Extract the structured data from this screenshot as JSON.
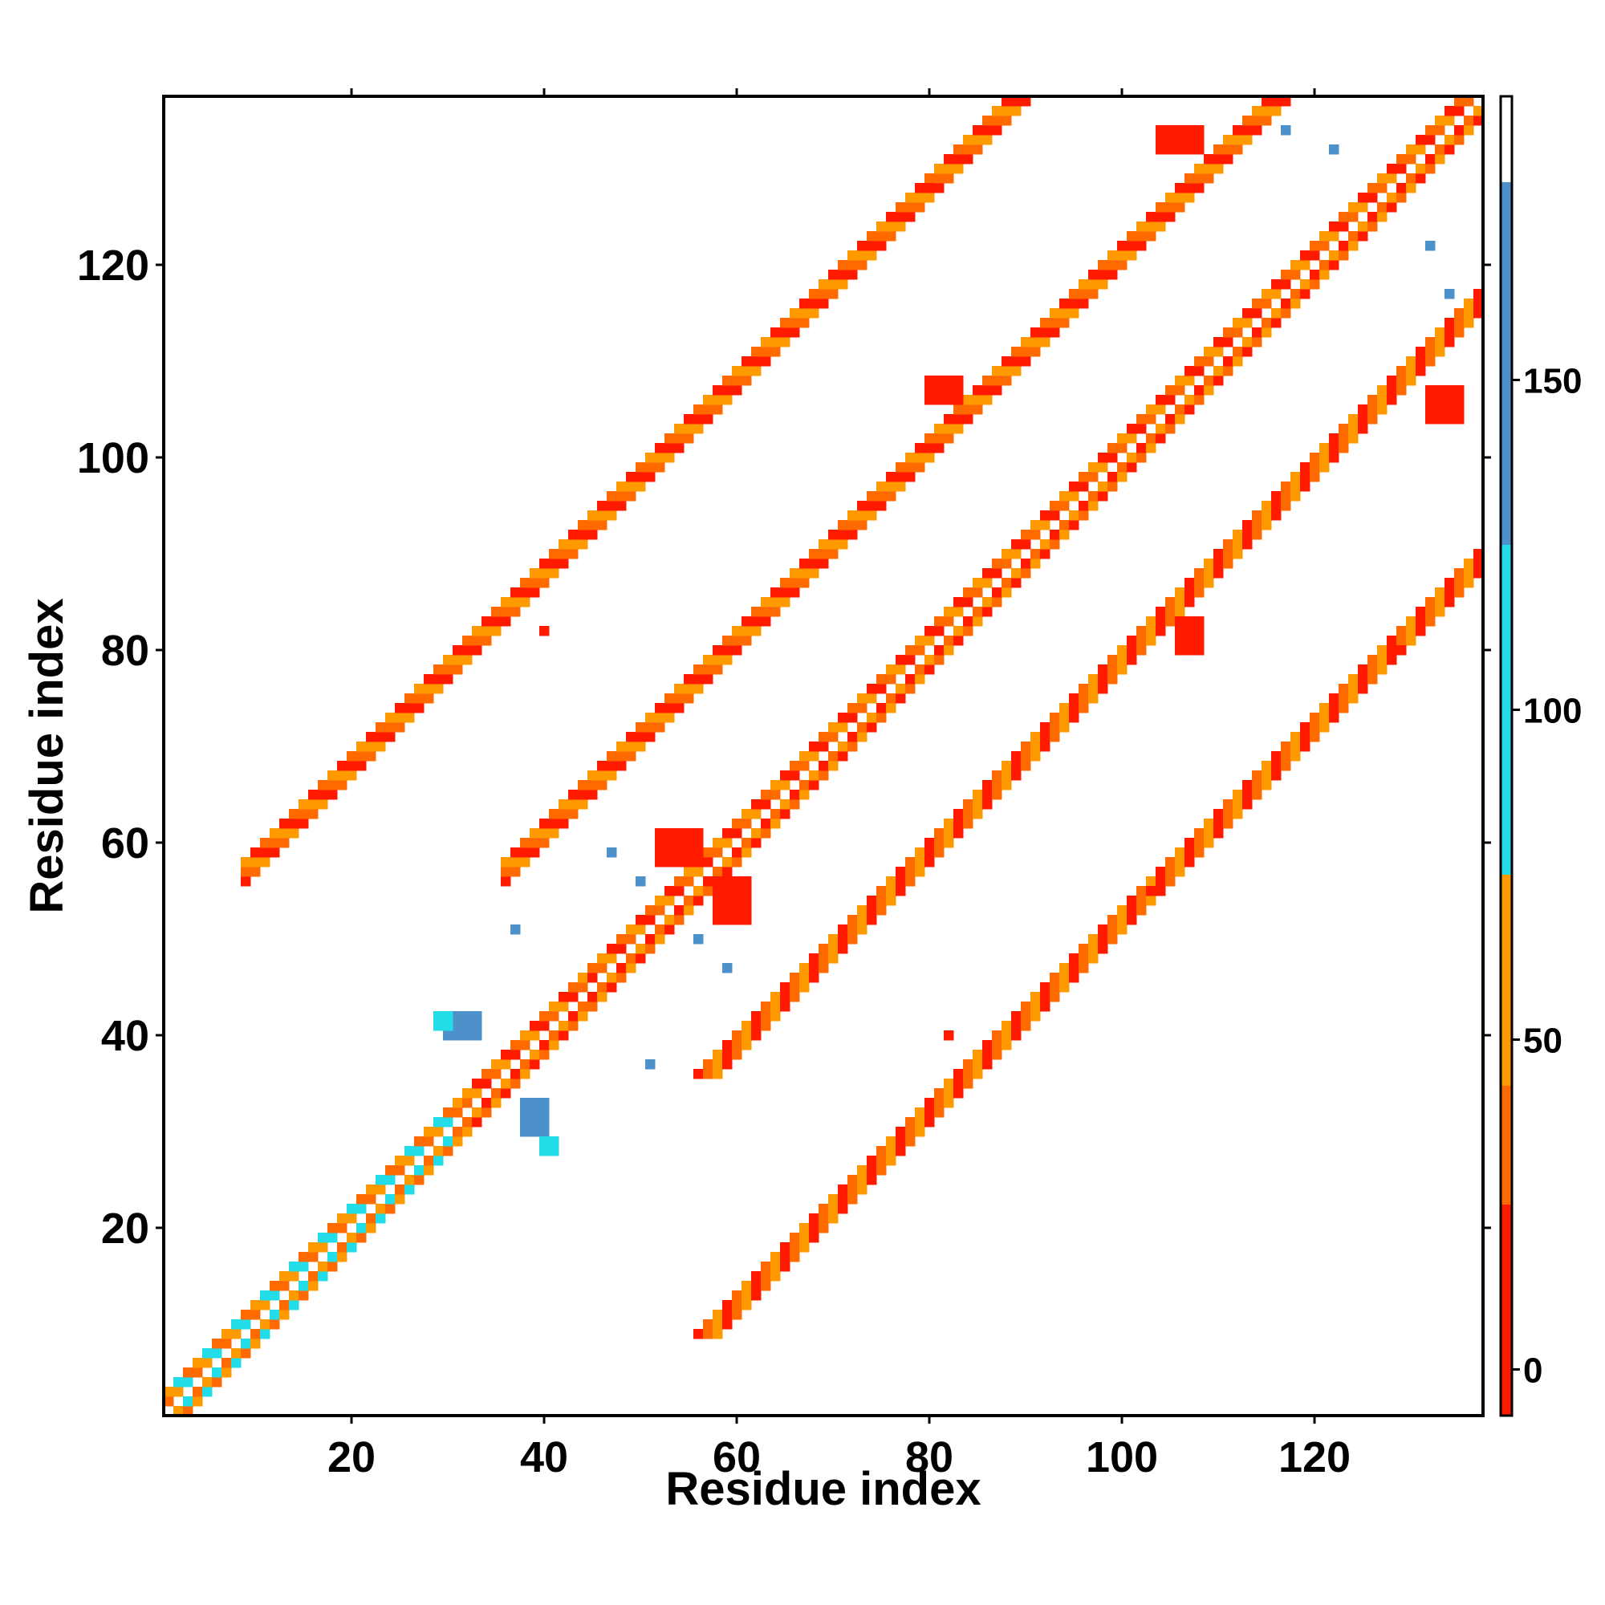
{
  "chart_data": {
    "type": "heatmap",
    "title": "",
    "xlabel": "Residue index",
    "ylabel": "Residue index",
    "xlim": [
      1,
      137
    ],
    "ylim": [
      1,
      137
    ],
    "x_ticks": [
      20,
      40,
      60,
      80,
      100,
      120
    ],
    "y_ticks": [
      20,
      40,
      60,
      80,
      100,
      120
    ],
    "colorbar": {
      "ticks": [
        0,
        50,
        100,
        150
      ],
      "range": [
        -7,
        193
      ],
      "bands": [
        {
          "from": -7,
          "to": 25,
          "color": "#ff1a00"
        },
        {
          "from": 25,
          "to": 43,
          "color": "#ff6a00"
        },
        {
          "from": 43,
          "to": 75,
          "color": "#ff9900"
        },
        {
          "from": 75,
          "to": 125,
          "color": "#22dde8"
        },
        {
          "from": 125,
          "to": 180,
          "color": "#4c91c9"
        },
        {
          "from": 180,
          "to": 193,
          "color": "#ffffff"
        }
      ]
    },
    "colors": {
      "red": "#ff1a00",
      "red_orange": "#ff6a00",
      "orange": "#ff9900",
      "cyan": "#22dde8",
      "steel_blue": "#4c91c9"
    },
    "diagonal_band": {
      "description_values": "pattern along i=j, width 2",
      "segments": [
        {
          "from": 1,
          "to": 16,
          "colors": [
            "orange",
            "cyan",
            "red_orange"
          ]
        },
        {
          "from": 16,
          "to": 32,
          "colors": [
            "orange",
            "cyan",
            "red_orange"
          ]
        },
        {
          "from": 32,
          "to": 45,
          "colors": [
            "red_orange",
            "orange",
            "red"
          ]
        },
        {
          "from": 45,
          "to": 137,
          "colors": [
            "orange",
            "red",
            "red_orange"
          ]
        }
      ]
    },
    "bands": [
      {
        "offset": 20,
        "from": 36,
        "to": 117,
        "colors": [
          "red",
          "red_orange",
          "orange"
        ],
        "width": 3
      },
      {
        "offset": 20,
        "from": 117,
        "to": 133,
        "colors": [
          "red",
          "orange",
          "red_orange"
        ],
        "width": 3
      },
      {
        "offset": 47,
        "from": 9,
        "to": 31,
        "colors": [
          "red",
          "red_orange",
          "orange"
        ],
        "width": 3
      },
      {
        "offset": 47,
        "from": 31,
        "to": 90,
        "colors": [
          "red",
          "red_orange",
          "orange"
        ],
        "width": 3
      }
    ],
    "clusters": [
      {
        "x": 30,
        "y": 40,
        "w": 4,
        "h": 3,
        "color": "steel_blue"
      },
      {
        "x": 38,
        "y": 30,
        "w": 3,
        "h": 4,
        "color": "steel_blue"
      },
      {
        "x": 29,
        "y": 41,
        "w": 2,
        "h": 2,
        "color": "cyan"
      },
      {
        "x": 40,
        "y": 28,
        "w": 2,
        "h": 2,
        "color": "cyan"
      },
      {
        "x": 52,
        "y": 58,
        "w": 5,
        "h": 4,
        "color": "red"
      },
      {
        "x": 58,
        "y": 52,
        "w": 4,
        "h": 5,
        "color": "red"
      },
      {
        "x": 80,
        "y": 106,
        "w": 4,
        "h": 3,
        "color": "red"
      },
      {
        "x": 106,
        "y": 80,
        "w": 3,
        "h": 4,
        "color": "red"
      },
      {
        "x": 104,
        "y": 132,
        "w": 5,
        "h": 3,
        "color": "red"
      },
      {
        "x": 132,
        "y": 104,
        "w": 4,
        "h": 4,
        "color": "red"
      }
    ],
    "scatter_points": [
      {
        "x": 40,
        "y": 82,
        "color": "red"
      },
      {
        "x": 82,
        "y": 40,
        "color": "red"
      },
      {
        "x": 129,
        "y": 80,
        "color": "red"
      },
      {
        "x": 110,
        "y": 61,
        "color": "red"
      },
      {
        "x": 103,
        "y": 55,
        "color": "red"
      },
      {
        "x": 80,
        "y": 128,
        "color": "red"
      },
      {
        "x": 61,
        "y": 110,
        "color": "red"
      },
      {
        "x": 55,
        "y": 104,
        "color": "red"
      },
      {
        "x": 117,
        "y": 134,
        "color": "steel_blue"
      },
      {
        "x": 122,
        "y": 132,
        "color": "steel_blue"
      },
      {
        "x": 134,
        "y": 117,
        "color": "steel_blue"
      },
      {
        "x": 132,
        "y": 122,
        "color": "steel_blue"
      },
      {
        "x": 37,
        "y": 51,
        "color": "steel_blue"
      },
      {
        "x": 51,
        "y": 37,
        "color": "steel_blue"
      },
      {
        "x": 47,
        "y": 59,
        "color": "steel_blue"
      },
      {
        "x": 59,
        "y": 47,
        "color": "steel_blue"
      },
      {
        "x": 56,
        "y": 50,
        "color": "steel_blue"
      },
      {
        "x": 50,
        "y": 56,
        "color": "steel_blue"
      }
    ]
  }
}
